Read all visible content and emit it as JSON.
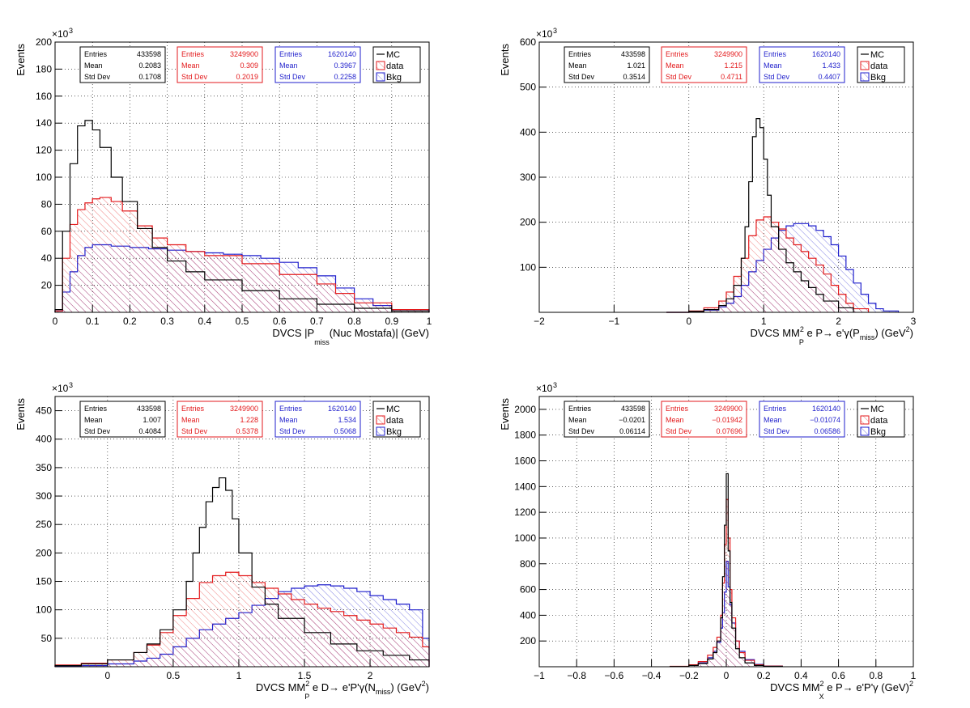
{
  "colors": {
    "mc": "#000000",
    "data": "#e31a1c",
    "bkg": "#1f1fcc",
    "grid": "#000000"
  },
  "legend_labels": [
    "MC",
    "data",
    "Bkg"
  ],
  "chart_data": [
    {
      "type": "histogram",
      "ylabel": "Events",
      "xlabel_parts": {
        "pre": "DVCS |P",
        "sub": "miss",
        "post": "(Nuc Mostafa)| (GeV)"
      },
      "exponent_base": "×10",
      "exponent_power": "3",
      "xlim": [
        0,
        1
      ],
      "ylim": [
        0,
        200
      ],
      "xticks": [
        0,
        0.1,
        0.2,
        0.3,
        0.4,
        0.5,
        0.6,
        0.7,
        0.8,
        0.9,
        1
      ],
      "xtick_labels": [
        "0",
        "0.1",
        "0.2",
        "0.3",
        "0.4",
        "0.5",
        "0.6",
        "0.7",
        "0.8",
        "0.9",
        "1"
      ],
      "yticks": [
        20,
        40,
        60,
        80,
        100,
        120,
        140,
        160,
        180,
        200
      ],
      "ytick_labels": [
        "20",
        "40",
        "60",
        "80",
        "100",
        "120",
        "140",
        "160",
        "180",
        "200"
      ],
      "stats": [
        {
          "entries": "433598",
          "mean": "0.2083",
          "stddev": "0.1708"
        },
        {
          "entries": "3249900",
          "mean": "0.309",
          "stddev": "0.2019"
        },
        {
          "entries": "1620140",
          "mean": "0.3967",
          "stddev": "0.2258"
        }
      ],
      "series": [
        {
          "key": "mc",
          "x": [
            0,
            0.02,
            0.04,
            0.06,
            0.08,
            0.1,
            0.12,
            0.15,
            0.18,
            0.22,
            0.26,
            0.3,
            0.35,
            0.4,
            0.5,
            0.6,
            0.7,
            0.8,
            0.9,
            1.0
          ],
          "y": [
            2,
            60,
            110,
            138,
            142,
            135,
            122,
            100,
            82,
            62,
            48,
            38,
            30,
            24,
            16,
            10,
            6,
            3,
            1,
            0
          ]
        },
        {
          "key": "data",
          "x": [
            0,
            0.02,
            0.04,
            0.06,
            0.08,
            0.1,
            0.12,
            0.15,
            0.18,
            0.22,
            0.26,
            0.3,
            0.35,
            0.4,
            0.5,
            0.6,
            0.7,
            0.75,
            0.8,
            0.9,
            1.0
          ],
          "y": [
            1,
            40,
            65,
            76,
            81,
            84,
            85,
            82,
            75,
            64,
            55,
            50,
            45,
            42,
            36,
            28,
            21,
            14,
            7,
            2,
            0
          ]
        },
        {
          "key": "bkg",
          "x": [
            0,
            0.02,
            0.04,
            0.06,
            0.08,
            0.1,
            0.12,
            0.15,
            0.2,
            0.25,
            0.3,
            0.35,
            0.4,
            0.45,
            0.5,
            0.55,
            0.6,
            0.65,
            0.7,
            0.75,
            0.8,
            0.85,
            0.9,
            1.0
          ],
          "y": [
            1,
            15,
            30,
            42,
            48,
            50,
            50,
            49,
            48,
            47,
            46,
            45,
            44,
            43,
            42,
            40,
            37,
            33,
            27,
            18,
            10,
            5,
            2,
            0
          ]
        }
      ]
    },
    {
      "type": "histogram",
      "ylabel": "Events",
      "xlabel_parts": {
        "pre": "DVCS MM",
        "sup": "2",
        "sub": "P",
        "post": " e P→ e'γ(P",
        "sub2": "miss",
        "post2": ") (GeV",
        "sup2": "2",
        "post3": ")"
      },
      "exponent_base": "×10",
      "exponent_power": "3",
      "xlim": [
        -2,
        3
      ],
      "ylim": [
        0,
        600
      ],
      "xticks": [
        -2,
        -1,
        0,
        1,
        2,
        3
      ],
      "xtick_labels": [
        "−2",
        "−1",
        "0",
        "1",
        "2",
        "3"
      ],
      "yticks": [
        100,
        200,
        300,
        400,
        500,
        600
      ],
      "ytick_labels": [
        "100",
        "200",
        "300",
        "400",
        "500",
        "600"
      ],
      "stats": [
        {
          "entries": "433598",
          "mean": "1.021",
          "stddev": "0.3514"
        },
        {
          "entries": "3249900",
          "mean": "1.215",
          "stddev": "0.4711"
        },
        {
          "entries": "1620140",
          "mean": "1.433",
          "stddev": "0.4407"
        }
      ],
      "series": [
        {
          "key": "mc",
          "x": [
            -0.3,
            0.0,
            0.2,
            0.4,
            0.5,
            0.6,
            0.7,
            0.75,
            0.8,
            0.85,
            0.9,
            0.95,
            1.0,
            1.05,
            1.1,
            1.2,
            1.3,
            1.4,
            1.5,
            1.6,
            1.7,
            1.8,
            2.0,
            2.2
          ],
          "y": [
            0,
            2,
            6,
            15,
            30,
            60,
            120,
            190,
            290,
            390,
            430,
            410,
            340,
            260,
            190,
            140,
            110,
            90,
            70,
            55,
            40,
            25,
            10,
            2
          ]
        },
        {
          "key": "data",
          "x": [
            -0.3,
            0.0,
            0.2,
            0.4,
            0.5,
            0.6,
            0.7,
            0.8,
            0.9,
            1.0,
            1.1,
            1.2,
            1.3,
            1.4,
            1.5,
            1.6,
            1.7,
            1.8,
            1.9,
            2.0,
            2.1,
            2.2,
            2.4
          ],
          "y": [
            0,
            3,
            10,
            25,
            45,
            80,
            120,
            170,
            205,
            212,
            200,
            185,
            165,
            150,
            135,
            120,
            105,
            85,
            60,
            40,
            20,
            8,
            2
          ]
        },
        {
          "key": "bkg",
          "x": [
            -0.3,
            0.0,
            0.2,
            0.4,
            0.5,
            0.6,
            0.7,
            0.8,
            0.9,
            1.0,
            1.1,
            1.2,
            1.3,
            1.4,
            1.5,
            1.6,
            1.7,
            1.8,
            1.9,
            2.0,
            2.1,
            2.2,
            2.3,
            2.4,
            2.5,
            2.6,
            2.8
          ],
          "y": [
            0,
            2,
            5,
            12,
            20,
            35,
            60,
            90,
            115,
            140,
            165,
            182,
            192,
            197,
            197,
            192,
            182,
            168,
            150,
            125,
            95,
            65,
            40,
            20,
            8,
            3,
            0
          ]
        }
      ]
    },
    {
      "type": "histogram",
      "ylabel": "Events",
      "xlabel_parts": {
        "pre": "DVCS MM",
        "sup": "2",
        "sub": "P",
        "post": " e D→ e'P'γ(N",
        "sub2": "miss",
        "post2": ") (GeV",
        "sup2": "2",
        "post3": ")"
      },
      "exponent_base": "×10",
      "exponent_power": "3",
      "xlim": [
        -0.4,
        2.45
      ],
      "ylim": [
        0,
        475
      ],
      "xticks": [
        0,
        0.5,
        1,
        1.5,
        2
      ],
      "xtick_labels": [
        "0",
        "0.5",
        "1",
        "1.5",
        "2"
      ],
      "yticks": [
        50,
        100,
        150,
        200,
        250,
        300,
        350,
        400,
        450
      ],
      "ytick_labels": [
        "50",
        "100",
        "150",
        "200",
        "250",
        "300",
        "350",
        "400",
        "450"
      ],
      "stats": [
        {
          "entries": "433598",
          "mean": "1.007",
          "stddev": "0.4084"
        },
        {
          "entries": "3249900",
          "mean": "1.228",
          "stddev": "0.5378"
        },
        {
          "entries": "1620140",
          "mean": "1.534",
          "stddev": "0.5068"
        }
      ],
      "series": [
        {
          "key": "mc",
          "x": [
            -0.4,
            -0.2,
            0.0,
            0.2,
            0.3,
            0.4,
            0.5,
            0.6,
            0.65,
            0.7,
            0.75,
            0.8,
            0.85,
            0.9,
            0.95,
            1.0,
            1.1,
            1.2,
            1.3,
            1.5,
            1.7,
            1.9,
            2.1,
            2.3,
            2.45
          ],
          "y": [
            2,
            5,
            12,
            25,
            40,
            65,
            100,
            150,
            200,
            245,
            290,
            315,
            332,
            310,
            260,
            200,
            140,
            110,
            85,
            60,
            40,
            28,
            20,
            12,
            8
          ]
        },
        {
          "key": "data",
          "x": [
            -0.4,
            -0.2,
            0.0,
            0.2,
            0.3,
            0.4,
            0.5,
            0.6,
            0.7,
            0.8,
            0.9,
            1.0,
            1.1,
            1.2,
            1.3,
            1.4,
            1.5,
            1.6,
            1.7,
            1.8,
            1.9,
            2.0,
            2.1,
            2.2,
            2.3,
            2.4,
            2.45
          ],
          "y": [
            3,
            6,
            12,
            25,
            38,
            60,
            90,
            120,
            148,
            160,
            166,
            160,
            148,
            138,
            128,
            118,
            110,
            103,
            97,
            90,
            82,
            75,
            68,
            60,
            52,
            35,
            30
          ]
        },
        {
          "key": "bkg",
          "x": [
            -0.4,
            -0.2,
            0.0,
            0.2,
            0.3,
            0.4,
            0.5,
            0.6,
            0.7,
            0.8,
            0.9,
            1.0,
            1.1,
            1.2,
            1.3,
            1.4,
            1.5,
            1.6,
            1.7,
            1.8,
            1.9,
            2.0,
            2.1,
            2.2,
            2.3,
            2.4,
            2.45
          ],
          "y": [
            1,
            2,
            5,
            10,
            15,
            22,
            35,
            50,
            65,
            75,
            85,
            95,
            108,
            120,
            132,
            138,
            142,
            144,
            142,
            138,
            132,
            125,
            118,
            110,
            100,
            50,
            30
          ]
        }
      ]
    },
    {
      "type": "histogram",
      "ylabel": "Events",
      "xlabel_parts": {
        "pre": "DVCS MM",
        "sup": "2",
        "sub": "X",
        "post": " e P→ e'P'γ (GeV",
        "sup2": "2",
        "post2": ")"
      },
      "exponent_base": "×10",
      "exponent_power": "3",
      "xlim": [
        -1,
        1
      ],
      "ylim": [
        0,
        2100
      ],
      "xticks": [
        -1,
        -0.8,
        -0.6,
        -0.4,
        -0.2,
        0,
        0.2,
        0.4,
        0.6,
        0.8,
        1
      ],
      "xtick_labels": [
        "−1",
        "−0.8",
        "−0.6",
        "−0.4",
        "−0.2",
        "0",
        "0.2",
        "0.4",
        "0.6",
        "0.8",
        "1"
      ],
      "yticks": [
        200,
        400,
        600,
        800,
        1000,
        1200,
        1400,
        1600,
        1800,
        2000
      ],
      "ytick_labels": [
        "200",
        "400",
        "600",
        "800",
        "1000",
        "1200",
        "1400",
        "1600",
        "1800",
        "2000"
      ],
      "stats": [
        {
          "entries": "433598",
          "mean": "−0.0201",
          "stddev": "0.06114"
        },
        {
          "entries": "3249900",
          "mean": "−0.01942",
          "stddev": "0.07696"
        },
        {
          "entries": "1620140",
          "mean": "−0.01074",
          "stddev": "0.06586"
        }
      ],
      "series": [
        {
          "key": "mc",
          "x": [
            -0.3,
            -0.2,
            -0.15,
            -0.1,
            -0.07,
            -0.05,
            -0.03,
            -0.02,
            -0.01,
            0.0,
            0.01,
            0.02,
            0.03,
            0.05,
            0.07,
            0.1,
            0.15,
            0.2,
            0.3
          ],
          "y": [
            2,
            10,
            25,
            60,
            110,
            200,
            380,
            700,
            1100,
            1500,
            900,
            500,
            300,
            140,
            70,
            30,
            10,
            3,
            1
          ]
        },
        {
          "key": "data",
          "x": [
            -0.3,
            -0.2,
            -0.15,
            -0.1,
            -0.07,
            -0.05,
            -0.03,
            -0.02,
            -0.01,
            0.0,
            0.01,
            0.02,
            0.03,
            0.05,
            0.07,
            0.1,
            0.15,
            0.2,
            0.3
          ],
          "y": [
            3,
            15,
            40,
            90,
            150,
            230,
            400,
            650,
            950,
            1300,
            1000,
            600,
            380,
            200,
            110,
            50,
            15,
            5,
            1
          ]
        },
        {
          "key": "bkg",
          "x": [
            -0.3,
            -0.2,
            -0.15,
            -0.1,
            -0.07,
            -0.05,
            -0.03,
            -0.02,
            -0.01,
            0.0,
            0.01,
            0.02,
            0.03,
            0.05,
            0.07,
            0.1,
            0.15,
            0.2,
            0.3
          ],
          "y": [
            2,
            10,
            30,
            70,
            120,
            190,
            300,
            420,
            580,
            820,
            620,
            480,
            340,
            200,
            120,
            55,
            18,
            6,
            1
          ]
        }
      ]
    }
  ]
}
